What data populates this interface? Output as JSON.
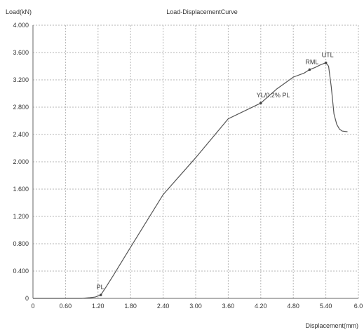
{
  "chart_data": {
    "type": "line",
    "title": "Load-DisplacementCurve",
    "ylabel": "Load(kN)",
    "xlabel": "Displacement(mm)",
    "xlim": [
      0,
      6.0
    ],
    "ylim": [
      0,
      4.0
    ],
    "grid": true,
    "x_ticks": [
      0,
      0.6,
      1.2,
      1.8,
      2.4,
      3.0,
      3.6,
      4.2,
      4.8,
      5.4,
      6.0
    ],
    "x_tick_labels": [
      "0",
      "0.60",
      "1.20",
      "1.80",
      "2.40",
      "3.00",
      "3.60",
      "4.20",
      "4.80",
      "5.40",
      "6.0"
    ],
    "y_ticks": [
      0,
      0.4,
      0.8,
      1.2,
      1.6,
      2.0,
      2.4,
      2.8,
      3.2,
      3.6,
      4.0
    ],
    "y_tick_labels": [
      "0",
      "0.400",
      "0.800",
      "1.200",
      "1.600",
      "2.000",
      "2.400",
      "2.800",
      "3.200",
      "3.600",
      "4.000"
    ],
    "series": [
      {
        "color": "#555555",
        "x": [
          0,
          0.9,
          1.05,
          1.15,
          1.25,
          1.35,
          1.5,
          1.8,
          2.4,
          3.0,
          3.6,
          4.2,
          4.5,
          4.8,
          5.0,
          5.1,
          5.2,
          5.3,
          5.4,
          5.45,
          5.5,
          5.55,
          5.6,
          5.65,
          5.7,
          5.8
        ],
        "y": [
          0,
          0,
          0.01,
          0.02,
          0.05,
          0.17,
          0.36,
          0.75,
          1.52,
          2.06,
          2.63,
          2.86,
          3.07,
          3.24,
          3.3,
          3.35,
          3.38,
          3.42,
          3.45,
          3.4,
          3.1,
          2.7,
          2.55,
          2.48,
          2.45,
          2.44
        ]
      }
    ],
    "annotations": [
      {
        "text": "PL",
        "x": 1.25,
        "y": 0.05
      },
      {
        "text": "YL/0.2% PL",
        "x": 4.2,
        "y": 2.86
      },
      {
        "text": "RML",
        "x": 5.1,
        "y": 3.35
      },
      {
        "text": "UTL",
        "x": 5.4,
        "y": 3.45
      }
    ]
  }
}
